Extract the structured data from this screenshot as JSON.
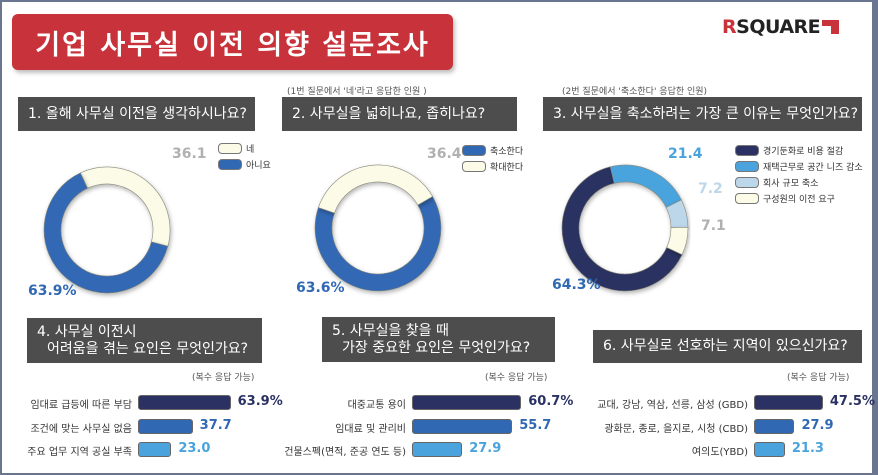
{
  "title": "기업 사무실 이전 의향 설문조사",
  "logo": {
    "text_r": "R",
    "text_rest": "SQUARE"
  },
  "colors": {
    "navy": "#2b3162",
    "blue": "#3068b4",
    "sky": "#4aa3dc",
    "pale_blue": "#bcd6ea",
    "cream": "#fbfbe8",
    "red": "#c8323a",
    "box": "#4d4d4d"
  },
  "q1": {
    "question": "1. 올해 사무실 이전을 생각하시나요?",
    "chart_data": {
      "type": "pie",
      "values": [
        {
          "label": "네",
          "value": 36.1,
          "display": "36.1",
          "color": "#fbfbe8",
          "text_color": "#b0b0b0"
        },
        {
          "label": "아니요",
          "value": 63.9,
          "display": "63.9%",
          "color": "#3068b4",
          "text_color": "#3068b4"
        }
      ]
    }
  },
  "q2": {
    "note": "(1번 질문에서 '네'라고 응답한 인원 )",
    "question": "2. 사무실을 넓히나요, 좁히나요?",
    "chart_data": {
      "type": "pie",
      "values": [
        {
          "label": "축소한다",
          "value": 63.6,
          "display": "63.6%",
          "color": "#3068b4",
          "text_color": "#3068b4"
        },
        {
          "label": "확대한다",
          "value": 36.4,
          "display": "36.4",
          "color": "#fbfbe8",
          "text_color": "#b0b0b0"
        }
      ]
    }
  },
  "q3": {
    "note": "(2번 질문에서 '축소한다' 응답한 인원)",
    "question": "3. 사무실을 축소하려는 가장 큰 이유는 무엇인가요?",
    "chart_data": {
      "type": "pie",
      "values": [
        {
          "label": "경기둔화로 비용 절감",
          "value": 64.3,
          "display": "64.3%",
          "color": "#2b3162",
          "text_color": "#3068b4"
        },
        {
          "label": "재택근무로 공간 니즈 감소",
          "value": 21.4,
          "display": "21.4",
          "color": "#4aa3dc",
          "text_color": "#4aa3dc"
        },
        {
          "label": "회사 규모 축소",
          "value": 7.2,
          "display": "7.2",
          "color": "#bcd6ea",
          "text_color": "#bcd6ea"
        },
        {
          "label": "구성원의 이전 요구",
          "value": 7.1,
          "display": "7.1",
          "color": "#fbfbe8",
          "text_color": "#b0b0b0"
        }
      ]
    }
  },
  "q4": {
    "question_line1": "4. 사무실 이전시",
    "question_line2": "어려움을 겪는 요인은 무엇인가요?",
    "note": "(복수 응답 가능)",
    "chart_data": {
      "type": "bar",
      "categories": [
        "임대료 급등에 따른 부담",
        "조건에 맞는 사무실 없음",
        "주요 업무 지역 공실 부족"
      ],
      "values": [
        63.9,
        37.7,
        23.0
      ],
      "labels": [
        "63.9%",
        "37.7",
        "23.0"
      ]
    }
  },
  "q5": {
    "question_line1": "5. 사무실을 찾을 때",
    "question_line2": "가장 중요한 요인은 무엇인가요?",
    "note": "(복수 응답 가능)",
    "chart_data": {
      "type": "bar",
      "categories": [
        "대중교통 용이",
        "임대료 및 관리비",
        "건물스펙(면적, 준공 연도 등)"
      ],
      "values": [
        60.7,
        55.7,
        27.9
      ],
      "labels": [
        "60.7%",
        "55.7",
        "27.9"
      ]
    }
  },
  "q6": {
    "question": "6. 사무실로 선호하는 지역이 있으신가요?",
    "note": "(복수 응답 가능)",
    "chart_data": {
      "type": "bar",
      "categories": [
        "교대, 강남, 역삼, 선릉, 삼성 (GBD)",
        "광화문, 종로, 을지로, 시청 (CBD)",
        "여의도(YBD)"
      ],
      "values": [
        47.5,
        27.9,
        21.3
      ],
      "labels": [
        "47.5%",
        "27.9",
        "21.3"
      ]
    }
  }
}
